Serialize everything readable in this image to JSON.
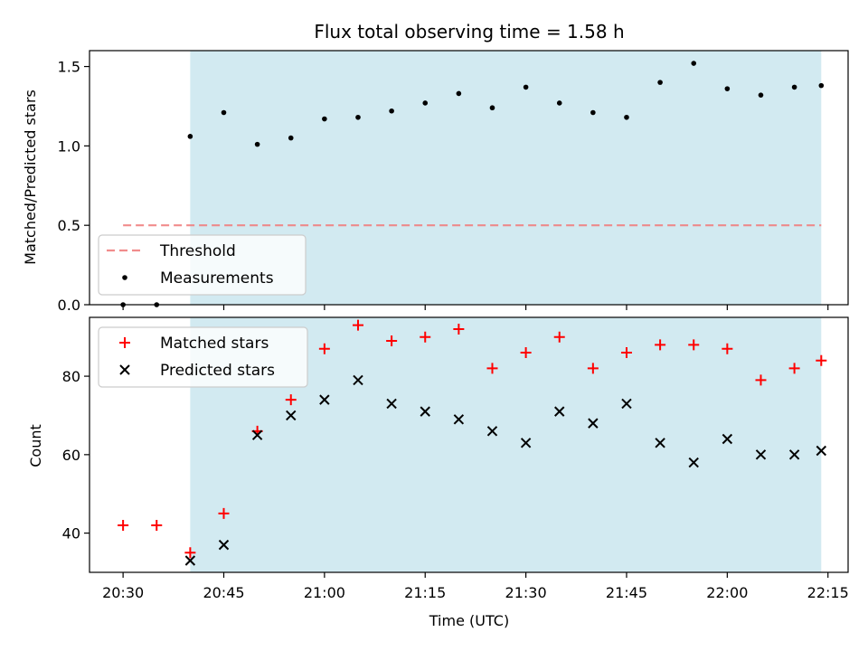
{
  "chart_data": [
    {
      "type": "scatter",
      "title": "Flux total observing time = 1.58 h",
      "ylabel": "Matched/Predicted stars",
      "ylim": [
        0,
        1.6
      ],
      "yticks": [
        "0.0",
        "0.5",
        "1.0",
        "1.5"
      ],
      "xlim": [
        "20:25",
        "22:18"
      ],
      "shaded_span": [
        "20:40",
        "22:14"
      ],
      "shade_color": "#add8e6",
      "threshold": {
        "name": "Threshold",
        "value": 0.5,
        "x_range": [
          "20:30",
          "22:14"
        ],
        "color": "#f08080"
      },
      "legend": {
        "loc": "lower left",
        "entries": [
          "Threshold",
          "Measurements"
        ]
      },
      "series": [
        {
          "name": "Measurements",
          "color": "#000000",
          "points": [
            {
              "x": "20:30",
              "y": 0.0
            },
            {
              "x": "20:35",
              "y": 0.0
            },
            {
              "x": "20:40",
              "y": 1.06
            },
            {
              "x": "20:45",
              "y": 1.21
            },
            {
              "x": "20:50",
              "y": 1.01
            },
            {
              "x": "20:55",
              "y": 1.05
            },
            {
              "x": "21:00",
              "y": 1.17
            },
            {
              "x": "21:05",
              "y": 1.18
            },
            {
              "x": "21:10",
              "y": 1.22
            },
            {
              "x": "21:15",
              "y": 1.27
            },
            {
              "x": "21:20",
              "y": 1.33
            },
            {
              "x": "21:25",
              "y": 1.24
            },
            {
              "x": "21:30",
              "y": 1.37
            },
            {
              "x": "21:35",
              "y": 1.27
            },
            {
              "x": "21:40",
              "y": 1.21
            },
            {
              "x": "21:45",
              "y": 1.18
            },
            {
              "x": "21:50",
              "y": 1.4
            },
            {
              "x": "21:55",
              "y": 1.52
            },
            {
              "x": "22:00",
              "y": 1.36
            },
            {
              "x": "22:05",
              "y": 1.32
            },
            {
              "x": "22:10",
              "y": 1.37
            },
            {
              "x": "22:14",
              "y": 1.38
            }
          ]
        }
      ]
    },
    {
      "type": "scatter",
      "xlabel": "Time (UTC)",
      "ylabel": "Count",
      "ylim": [
        30,
        95
      ],
      "yticks": [
        "40",
        "60",
        "80"
      ],
      "xlim": [
        "20:25",
        "22:18"
      ],
      "xticks": [
        "20:30",
        "20:45",
        "21:00",
        "21:15",
        "21:30",
        "21:45",
        "22:00",
        "22:15"
      ],
      "shaded_span": [
        "20:40",
        "22:14"
      ],
      "shade_color": "#add8e6",
      "legend": {
        "loc": "upper left",
        "entries": [
          "Matched stars",
          "Predicted stars"
        ]
      },
      "x": [
        "20:30",
        "20:35",
        "20:40",
        "20:45",
        "20:50",
        "20:55",
        "21:00",
        "21:05",
        "21:10",
        "21:15",
        "21:20",
        "21:25",
        "21:30",
        "21:35",
        "21:40",
        "21:45",
        "21:50",
        "21:55",
        "22:00",
        "22:05",
        "22:10",
        "22:14"
      ],
      "series": [
        {
          "name": "Matched stars",
          "marker": "plus",
          "color": "#ff0000",
          "values": [
            42,
            42,
            35,
            45,
            66,
            74,
            87,
            93,
            89,
            90,
            92,
            82,
            86,
            90,
            82,
            86,
            88,
            88,
            87,
            79,
            82,
            84
          ]
        },
        {
          "name": "Predicted stars",
          "marker": "x",
          "color": "#000000",
          "values": [
            null,
            null,
            33,
            37,
            65,
            70,
            74,
            79,
            73,
            71,
            69,
            66,
            63,
            71,
            68,
            73,
            63,
            58,
            64,
            60,
            60,
            61
          ]
        }
      ]
    }
  ]
}
